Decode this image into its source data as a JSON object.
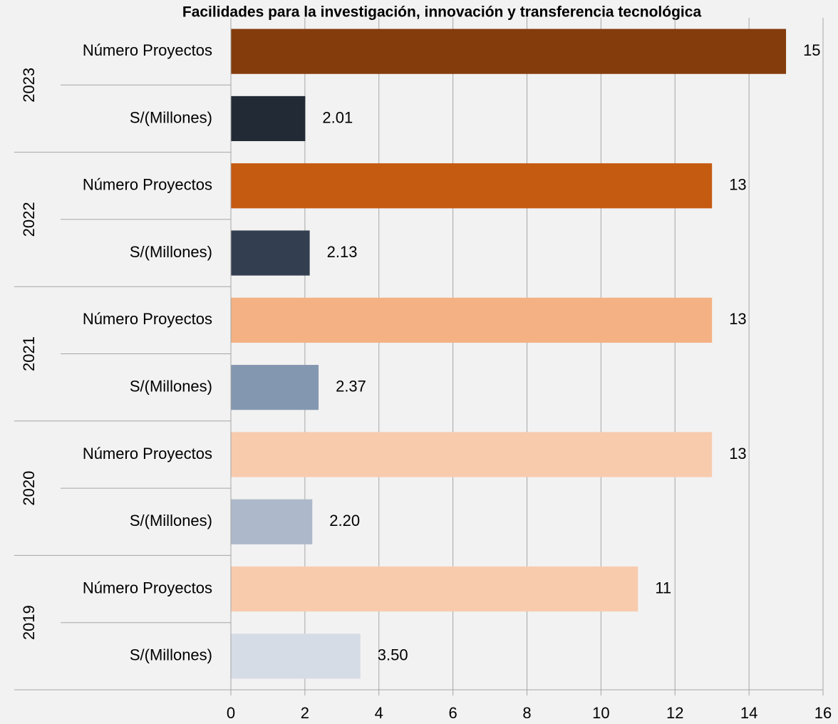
{
  "chart_data": {
    "type": "bar",
    "orientation": "horizontal",
    "title": "Facilidades para la investigación, innovación y transferencia tecnológica",
    "groups": [
      {
        "label": "2023",
        "categories": [
          "Número Proyectos",
          "S/(Millones)"
        ],
        "values": [
          15,
          2.01
        ],
        "value_labels": [
          "15",
          "2.01"
        ],
        "colors": [
          "#843c0c",
          "#222a35"
        ]
      },
      {
        "label": "2022",
        "categories": [
          "Número Proyectos",
          "S/(Millones)"
        ],
        "values": [
          13,
          2.13
        ],
        "value_labels": [
          "13",
          "2.13"
        ],
        "colors": [
          "#c55a11",
          "#333f50"
        ]
      },
      {
        "label": "2021",
        "categories": [
          "Número Proyectos",
          "S/(Millones)"
        ],
        "values": [
          13,
          2.37
        ],
        "value_labels": [
          "13",
          "2.37"
        ],
        "colors": [
          "#f4b183",
          "#8497b0"
        ]
      },
      {
        "label": "2020",
        "categories": [
          "Número Proyectos",
          "S/(Millones)"
        ],
        "values": [
          13,
          2.2
        ],
        "value_labels": [
          "13",
          "2.20"
        ],
        "colors": [
          "#f8cbad",
          "#adb9ca"
        ]
      },
      {
        "label": "2019",
        "categories": [
          "Número Proyectos",
          "S/(Millones)"
        ],
        "values": [
          11,
          3.5
        ],
        "value_labels": [
          "11",
          "3.50"
        ],
        "colors": [
          "#f8cbad",
          "#d6dce5"
        ]
      }
    ],
    "xlim": [
      0,
      16
    ],
    "xticks": [
      0,
      2,
      4,
      6,
      8,
      10,
      12,
      14,
      16
    ],
    "grid": true
  }
}
